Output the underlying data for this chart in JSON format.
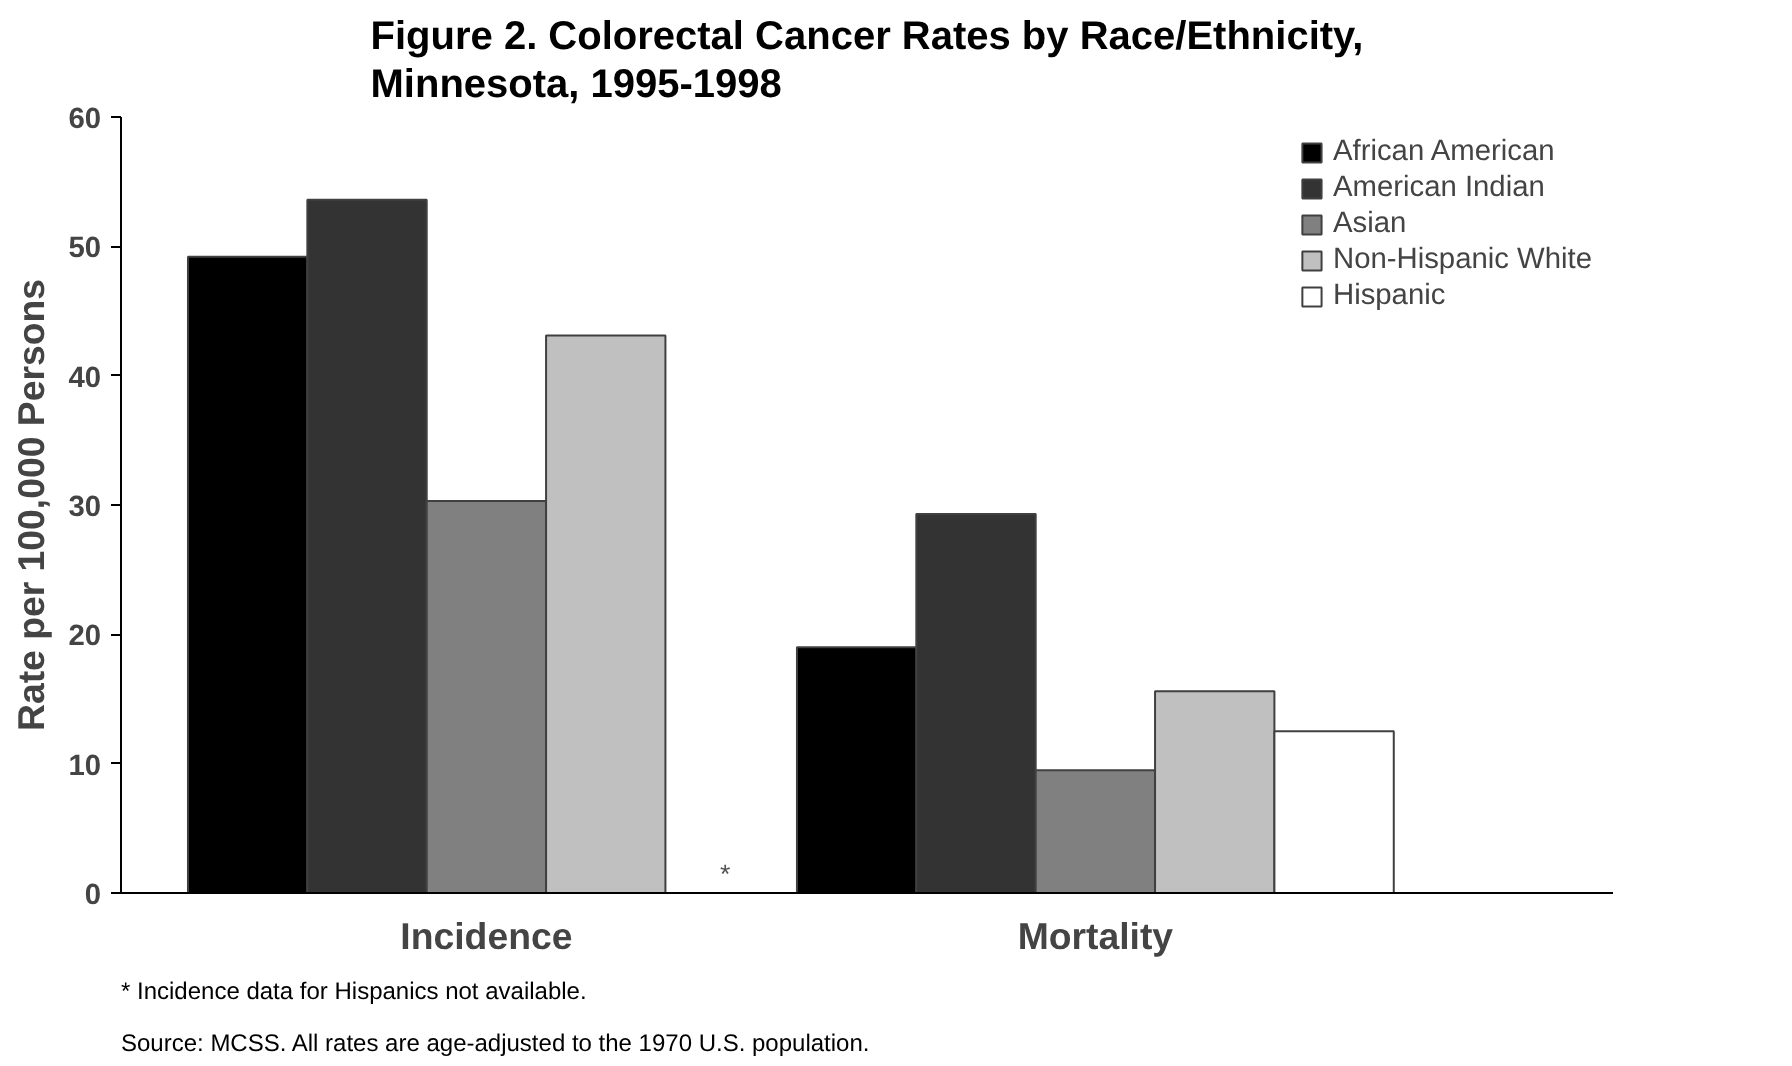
{
  "chart_data": {
    "type": "bar",
    "title": "Figure 2. Colorectal Cancer Rates by Race/Ethnicity,\nMinnesota, 1995-1998",
    "ylabel": "Rate per 100,000 Persons",
    "categories": [
      "Incidence",
      "Mortality"
    ],
    "series": [
      {
        "name": "African American",
        "color": "#000000",
        "values": [
          49.2,
          19.0
        ]
      },
      {
        "name": "American Indian",
        "color": "#333333",
        "values": [
          53.6,
          29.3
        ]
      },
      {
        "name": "Asian",
        "color": "#808080",
        "values": [
          30.3,
          9.5
        ]
      },
      {
        "name": "Non-Hispanic White",
        "color": "#c0c0c0",
        "values": [
          43.1,
          15.6
        ]
      },
      {
        "name": "Hispanic",
        "color": "#ffffff",
        "values": [
          null,
          12.5
        ]
      }
    ],
    "ylim": [
      0,
      60
    ],
    "yticks": [
      0,
      10,
      20,
      30,
      40,
      50,
      60
    ],
    "grid": false,
    "legend": "top right",
    "annotations": [
      "*",
      "* Incidence data for Hispanics not available.",
      "Source:  MCSS.  All rates are age-adjusted to the 1970 U.S. population."
    ]
  }
}
